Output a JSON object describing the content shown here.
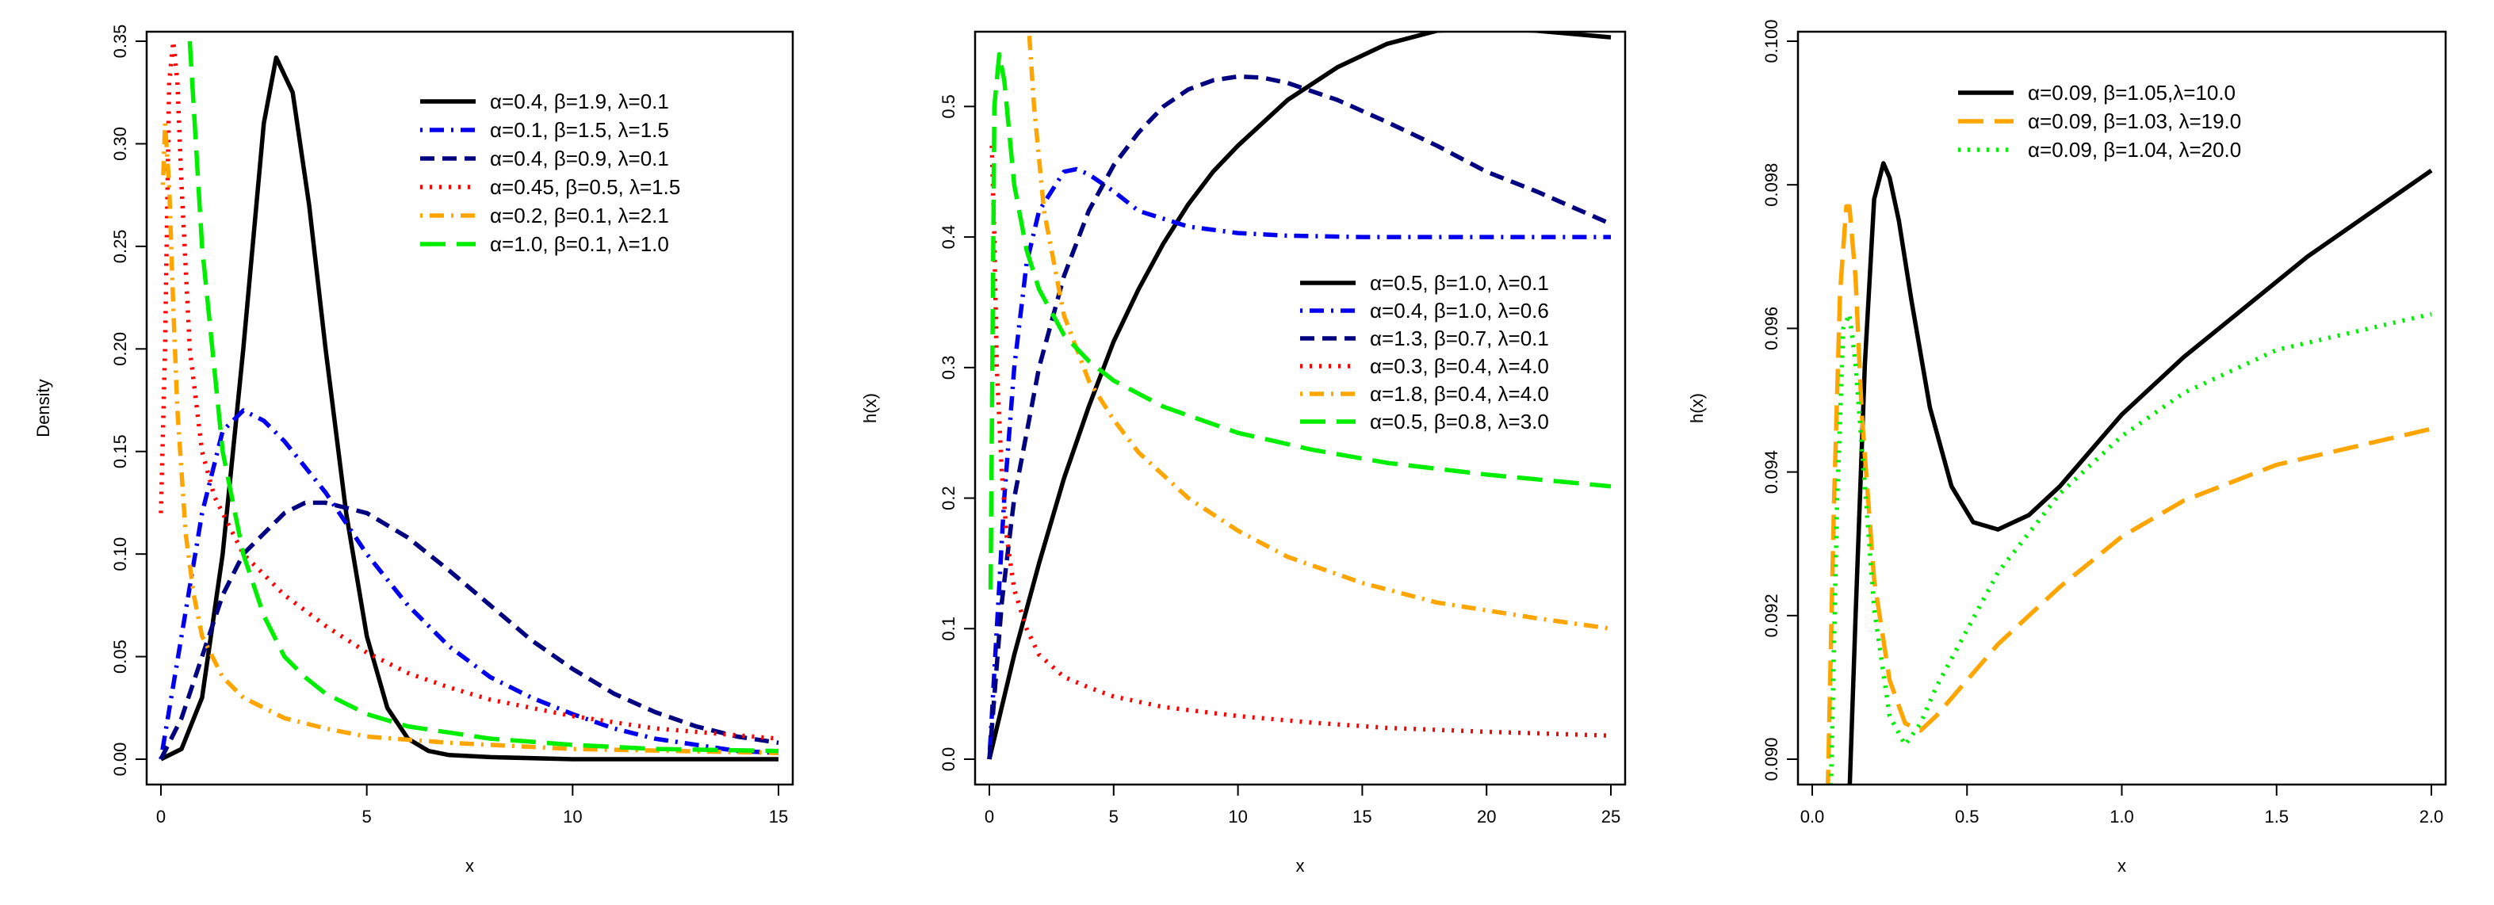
{
  "chart_data": [
    {
      "type": "line",
      "xlabel": "x",
      "ylabel": "Density",
      "xlim": [
        0,
        15
      ],
      "ylim": [
        0,
        0.35
      ],
      "xticks": [
        "0",
        "5",
        "10",
        "15"
      ],
      "yticks": [
        "0.00",
        "0.05",
        "0.10",
        "0.15",
        "0.20",
        "0.25",
        "0.30",
        "0.35"
      ],
      "legend_position": "top-right",
      "series": [
        {
          "name": "α=0.4, β=1.9, λ=0.1",
          "color": "#000000",
          "dash": "solid",
          "x": [
            0,
            0.5,
            1,
            1.5,
            2,
            2.5,
            2.8,
            3.2,
            3.6,
            4,
            4.5,
            5,
            5.5,
            6,
            6.5,
            7,
            8,
            10,
            15
          ],
          "y": [
            0,
            0.005,
            0.03,
            0.1,
            0.2,
            0.31,
            0.342,
            0.325,
            0.27,
            0.2,
            0.12,
            0.06,
            0.025,
            0.01,
            0.004,
            0.002,
            0.001,
            0,
            0
          ]
        },
        {
          "name": "α=0.1, β=1.5, λ=1.5",
          "color": "#0000ee",
          "dash": "dotdash",
          "x": [
            0,
            0.5,
            1,
            1.5,
            2,
            2.5,
            3,
            4,
            5,
            6,
            7,
            8,
            9,
            10,
            11,
            12,
            13,
            14,
            15
          ],
          "y": [
            0,
            0.06,
            0.12,
            0.16,
            0.17,
            0.165,
            0.155,
            0.13,
            0.1,
            0.075,
            0.055,
            0.04,
            0.03,
            0.022,
            0.015,
            0.01,
            0.007,
            0.004,
            0.003
          ]
        },
        {
          "name": "α=0.4, β=0.9, λ=0.1",
          "color": "#000080",
          "dash": "dashed",
          "x": [
            0,
            0.5,
            1,
            1.5,
            2,
            3,
            3.5,
            4,
            5,
            6,
            7,
            8,
            9,
            10,
            11,
            12,
            13,
            14,
            15
          ],
          "y": [
            0,
            0.02,
            0.05,
            0.08,
            0.1,
            0.12,
            0.125,
            0.125,
            0.12,
            0.108,
            0.092,
            0.075,
            0.058,
            0.044,
            0.032,
            0.023,
            0.016,
            0.011,
            0.008
          ]
        },
        {
          "name": "α=0.45, β=0.5, λ=1.5",
          "color": "#ff0000",
          "dash": "dotted",
          "x": [
            0,
            0.1,
            0.2,
            0.3,
            0.4,
            0.5,
            0.7,
            1,
            1.3,
            1.5,
            2,
            3,
            4,
            5,
            6,
            7,
            8,
            10,
            12,
            15
          ],
          "y": [
            0.12,
            0.2,
            0.33,
            0.35,
            0.33,
            0.28,
            0.2,
            0.15,
            0.128,
            0.12,
            0.1,
            0.08,
            0.065,
            0.052,
            0.042,
            0.035,
            0.029,
            0.021,
            0.015,
            0.01
          ]
        },
        {
          "name": "α=0.2, β=0.1, λ=2.1",
          "color": "#ffa500",
          "dash": "dotdash",
          "x": [
            0.05,
            0.1,
            0.2,
            0.3,
            0.4,
            0.6,
            0.8,
            1,
            1.5,
            2,
            3,
            4,
            5,
            7,
            10,
            15
          ],
          "y": [
            0.28,
            0.31,
            0.28,
            0.22,
            0.17,
            0.11,
            0.08,
            0.06,
            0.04,
            0.03,
            0.02,
            0.015,
            0.011,
            0.008,
            0.005,
            0.003
          ]
        },
        {
          "name": "α=1.0, β=0.1, λ=1.0",
          "color": "#00ee00",
          "dash": "longdash",
          "x": [
            0.7,
            1,
            1.5,
            2,
            2.5,
            3,
            3.5,
            4,
            5,
            6,
            8,
            10,
            12,
            15
          ],
          "y": [
            0.35,
            0.25,
            0.15,
            0.1,
            0.07,
            0.05,
            0.04,
            0.032,
            0.022,
            0.016,
            0.01,
            0.007,
            0.005,
            0.004
          ]
        }
      ]
    },
    {
      "type": "line",
      "xlabel": "x",
      "ylabel": "h(x)",
      "xlim": [
        0,
        25
      ],
      "ylim": [
        0,
        0.55
      ],
      "xticks": [
        "0",
        "5",
        "10",
        "15",
        "20",
        "25"
      ],
      "yticks": [
        "0.0",
        "0.1",
        "0.2",
        "0.3",
        "0.4",
        "0.5"
      ],
      "legend_position": "right",
      "series": [
        {
          "name": "α=0.5, β=1.0, λ=0.1",
          "color": "#000000",
          "dash": "solid",
          "x": [
            0,
            1,
            2,
            3,
            4,
            5,
            6,
            7,
            8,
            9,
            10,
            12,
            14,
            16,
            18,
            20,
            22,
            25
          ],
          "y": [
            0,
            0.08,
            0.15,
            0.215,
            0.27,
            0.32,
            0.36,
            0.395,
            0.425,
            0.45,
            0.47,
            0.505,
            0.53,
            0.548,
            0.558,
            0.56,
            0.558,
            0.553
          ]
        },
        {
          "name": "α=0.4, β=1.0, λ=0.6",
          "color": "#0000ee",
          "dash": "dotdash",
          "x": [
            0,
            0.3,
            0.6,
            1,
            1.5,
            2,
            3,
            3.5,
            4,
            5,
            6,
            8,
            10,
            12,
            15,
            20,
            25
          ],
          "y": [
            0,
            0.1,
            0.2,
            0.3,
            0.38,
            0.42,
            0.45,
            0.452,
            0.448,
            0.435,
            0.42,
            0.408,
            0.403,
            0.401,
            0.4,
            0.4,
            0.4
          ]
        },
        {
          "name": "α=1.3, β=0.7, λ=0.1",
          "color": "#000080",
          "dash": "dashed",
          "x": [
            0,
            0.5,
            1,
            2,
            3,
            4,
            5,
            6,
            7,
            8,
            9,
            10,
            11,
            12,
            14,
            16,
            18,
            20,
            22,
            25
          ],
          "y": [
            0,
            0.12,
            0.2,
            0.3,
            0.37,
            0.42,
            0.455,
            0.48,
            0.5,
            0.513,
            0.52,
            0.523,
            0.522,
            0.518,
            0.505,
            0.488,
            0.47,
            0.45,
            0.435,
            0.41
          ]
        },
        {
          "name": "α=0.3, β=0.4, λ=4.0",
          "color": "#ff0000",
          "dash": "dotted",
          "x": [
            0.1,
            0.2,
            0.3,
            0.5,
            0.7,
            1,
            1.5,
            2,
            3,
            4,
            5,
            7,
            10,
            13,
            16,
            20,
            25
          ],
          "y": [
            0.47,
            0.4,
            0.3,
            0.22,
            0.17,
            0.13,
            0.1,
            0.08,
            0.063,
            0.055,
            0.048,
            0.04,
            0.033,
            0.028,
            0.024,
            0.021,
            0.018
          ]
        },
        {
          "name": "α=1.8, β=0.4, λ=4.0",
          "color": "#ffa500",
          "dash": "dotdash",
          "x": [
            1.5,
            1.8,
            2.2,
            3,
            4,
            5,
            6,
            8,
            10,
            12,
            15,
            18,
            20,
            22,
            25
          ],
          "y": [
            0.585,
            0.5,
            0.42,
            0.34,
            0.29,
            0.26,
            0.235,
            0.2,
            0.175,
            0.155,
            0.135,
            0.12,
            0.114,
            0.108,
            0.1
          ]
        },
        {
          "name": "α=0.5, β=0.8, λ=3.0",
          "color": "#00ee00",
          "dash": "longdash",
          "x": [
            0.05,
            0.2,
            0.4,
            0.6,
            0.8,
            1,
            1.5,
            2,
            3,
            4,
            5,
            7,
            10,
            13,
            16,
            20,
            25
          ],
          "y": [
            0.13,
            0.5,
            0.54,
            0.52,
            0.48,
            0.44,
            0.39,
            0.36,
            0.325,
            0.305,
            0.29,
            0.27,
            0.25,
            0.237,
            0.227,
            0.218,
            0.209
          ]
        }
      ]
    },
    {
      "type": "line",
      "xlabel": "x",
      "ylabel": "h(x)",
      "xlim": [
        0,
        2
      ],
      "ylim": [
        0.09,
        0.1
      ],
      "xticks": [
        "0.0",
        "0.5",
        "1.0",
        "1.5",
        "2.0"
      ],
      "yticks": [
        "0.090",
        "0.092",
        "0.094",
        "0.096",
        "0.098",
        "0.100"
      ],
      "legend_position": "top",
      "series": [
        {
          "name": "α=0.09, β=1.05,λ=10.0",
          "color": "#000000",
          "dash": "solid",
          "x": [
            0.12,
            0.14,
            0.17,
            0.2,
            0.23,
            0.25,
            0.28,
            0.32,
            0.38,
            0.45,
            0.52,
            0.6,
            0.7,
            0.8,
            0.9,
            1.0,
            1.2,
            1.4,
            1.6,
            1.8,
            2.0
          ],
          "y": [
            0.0895,
            0.092,
            0.0955,
            0.0978,
            0.0983,
            0.0981,
            0.0975,
            0.0964,
            0.0949,
            0.0938,
            0.0933,
            0.0932,
            0.0934,
            0.0938,
            0.0943,
            0.0948,
            0.0956,
            0.0963,
            0.097,
            0.0976,
            0.0982
          ]
        },
        {
          "name": "α=0.09, β=1.03, λ=19.0",
          "color": "#ffa500",
          "dash": "longdash",
          "x": [
            0.05,
            0.07,
            0.09,
            0.11,
            0.12,
            0.14,
            0.16,
            0.2,
            0.25,
            0.3,
            0.35,
            0.4,
            0.5,
            0.6,
            0.8,
            1.0,
            1.2,
            1.5,
            2.0
          ],
          "y": [
            0.0895,
            0.0935,
            0.0965,
            0.0977,
            0.0977,
            0.0967,
            0.0948,
            0.0925,
            0.0911,
            0.0905,
            0.0904,
            0.0906,
            0.0911,
            0.0916,
            0.0924,
            0.0931,
            0.0936,
            0.0941,
            0.0946
          ]
        },
        {
          "name": "α=0.09, β=1.04, λ=20.0",
          "color": "#00ee00",
          "dash": "dotted",
          "x": [
            0.06,
            0.08,
            0.1,
            0.12,
            0.14,
            0.17,
            0.2,
            0.25,
            0.3,
            0.35,
            0.4,
            0.5,
            0.6,
            0.8,
            1.0,
            1.2,
            1.5,
            2.0
          ],
          "y": [
            0.0895,
            0.0935,
            0.096,
            0.0962,
            0.0955,
            0.0938,
            0.0921,
            0.0906,
            0.0902,
            0.0905,
            0.091,
            0.0918,
            0.0926,
            0.0937,
            0.0945,
            0.0951,
            0.0957,
            0.0962
          ]
        }
      ]
    }
  ]
}
